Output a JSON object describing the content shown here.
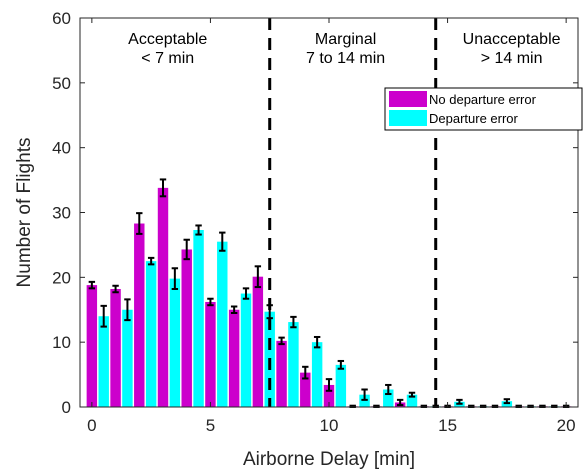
{
  "chart_data": {
    "type": "bar",
    "xlabel": "Airborne Delay [min]",
    "ylabel": "Number of Flights",
    "xlim": [
      -0.5,
      20.5
    ],
    "ylim": [
      0,
      60
    ],
    "xticks": [
      0,
      5,
      10,
      15,
      20
    ],
    "yticks": [
      0,
      10,
      20,
      30,
      40,
      50,
      60
    ],
    "grid": false,
    "legend_position": "top-right",
    "thresholds": [
      7.5,
      14.5
    ],
    "regions": [
      {
        "line1": "Acceptable",
        "line2": "< 7 min"
      },
      {
        "line1": "Marginal",
        "line2": "7 to 14 min"
      },
      {
        "line1": "Unacceptable",
        "line2": "> 14 min"
      }
    ],
    "series": [
      {
        "name": "No departure error",
        "color": "#cc00cc",
        "x": [
          0,
          1,
          2,
          3,
          4,
          5,
          6,
          7,
          8,
          9,
          10,
          11,
          12,
          13,
          14,
          15,
          16,
          17,
          18,
          19,
          20
        ],
        "values": [
          18.8,
          18.2,
          28.3,
          33.8,
          24.3,
          16.2,
          15.0,
          20.1,
          10.2,
          5.3,
          3.4,
          0.1,
          0.1,
          0.7,
          0.1,
          0.1,
          0.1,
          0.1,
          0.1,
          0.1,
          0.1
        ],
        "errors": [
          0.5,
          0.5,
          1.6,
          1.3,
          1.5,
          0.5,
          0.5,
          1.6,
          0.5,
          0.9,
          0.9,
          0.1,
          0.1,
          0.4,
          0.1,
          0.1,
          0.1,
          0.1,
          0.1,
          0.1,
          0.1
        ]
      },
      {
        "name": "Departure error",
        "color": "#00ffff",
        "x": [
          0.5,
          1.5,
          2.5,
          3.5,
          4.5,
          5.5,
          6.5,
          7.5,
          8.5,
          9.5,
          10.5,
          11.5,
          12.5,
          13.5,
          14.5,
          15.5,
          16.5,
          17.5,
          18.5,
          19.5
        ],
        "values": [
          14.0,
          15.0,
          22.5,
          19.8,
          27.3,
          25.5,
          17.5,
          14.7,
          13.1,
          10.0,
          6.5,
          1.9,
          2.7,
          1.9,
          0.1,
          0.8,
          0.1,
          0.9,
          0.1,
          0.1
        ],
        "errors": [
          1.6,
          1.6,
          0.5,
          1.6,
          0.7,
          1.4,
          0.8,
          1.0,
          0.8,
          0.8,
          0.6,
          0.8,
          0.7,
          0.3,
          0.1,
          0.3,
          0.1,
          0.3,
          0.1,
          0.1
        ]
      }
    ]
  }
}
